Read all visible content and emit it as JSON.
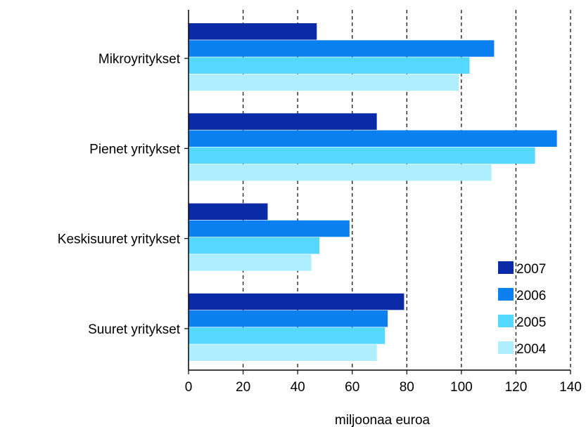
{
  "chart_data": {
    "type": "bar",
    "orientation": "horizontal",
    "categories": [
      "Mikroyritykset",
      "Pienet yritykset",
      "Keskisuuret yritykset",
      "Suuret yritykset"
    ],
    "series": [
      {
        "name": "2007",
        "values": [
          47,
          69,
          29,
          79
        ],
        "color": "#0a2aa8"
      },
      {
        "name": "2006",
        "values": [
          112,
          135,
          59,
          73
        ],
        "color": "#0b80f0"
      },
      {
        "name": "2005",
        "values": [
          103,
          127,
          48,
          72
        ],
        "color": "#55d8ff"
      },
      {
        "name": "2004",
        "values": [
          99,
          111,
          45,
          69
        ],
        "color": "#aeeeff"
      }
    ],
    "xlabel": "miljoonaa euroa",
    "ylabel": "",
    "xlim": [
      0,
      140
    ],
    "xticks": [
      "0",
      "20",
      "40",
      "60",
      "80",
      "100",
      "120",
      "140"
    ],
    "grid": "vertical dashed",
    "legend_position": "bottom-right"
  }
}
